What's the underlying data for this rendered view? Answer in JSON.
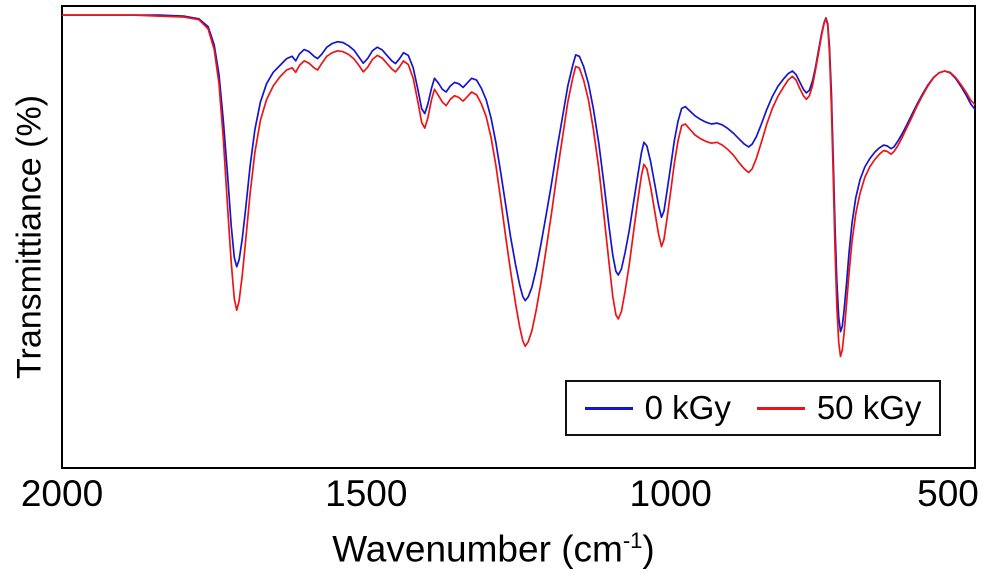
{
  "chart_data": {
    "type": "line",
    "title": "",
    "xlabel": "Wavenumber (cm⁻¹)",
    "ylabel": "Transmittiance (%)",
    "x_axis_reversed": true,
    "xlim": [
      2000,
      500
    ],
    "ylim": [
      0,
      100
    ],
    "x_ticks": [
      2000,
      1500,
      1000,
      500
    ],
    "y_ticks": [],
    "grid": false,
    "legend_position": "inside-bottom-right",
    "x": [
      2000,
      1960,
      1920,
      1880,
      1840,
      1800,
      1775,
      1760,
      1750,
      1742,
      1735,
      1728,
      1722,
      1717,
      1713,
      1709,
      1704,
      1698,
      1691,
      1683,
      1674,
      1664,
      1653,
      1642,
      1631,
      1622,
      1616,
      1610,
      1602,
      1594,
      1586,
      1580,
      1573,
      1565,
      1556,
      1547,
      1538,
      1529,
      1520,
      1512,
      1505,
      1498,
      1490,
      1482,
      1474,
      1466,
      1458,
      1452,
      1446,
      1439,
      1431,
      1423,
      1415,
      1409,
      1404,
      1399,
      1393,
      1388,
      1382,
      1375,
      1369,
      1362,
      1355,
      1348,
      1341,
      1334,
      1327,
      1319,
      1311,
      1303,
      1295,
      1287,
      1279,
      1271,
      1263,
      1255,
      1248,
      1243,
      1239,
      1234,
      1228,
      1221,
      1213,
      1205,
      1196,
      1187,
      1178,
      1169,
      1161,
      1156,
      1150,
      1143,
      1135,
      1127,
      1118,
      1109,
      1101,
      1095,
      1090,
      1086,
      1081,
      1075,
      1068,
      1061,
      1054,
      1048,
      1044,
      1039,
      1033,
      1026,
      1020,
      1015,
      1011,
      1006,
      1000,
      994,
      988,
      982,
      976,
      968,
      960,
      951,
      942,
      933,
      924,
      915,
      906,
      897,
      888,
      879,
      872,
      866,
      859,
      851,
      842,
      833,
      824,
      815,
      807,
      800,
      794,
      788,
      782,
      777,
      772,
      767,
      762,
      757,
      752,
      748,
      745,
      742,
      739,
      736,
      733,
      730,
      727,
      724,
      721,
      718,
      715,
      711,
      707,
      702,
      696,
      689,
      681,
      673,
      665,
      657,
      650,
      644,
      638,
      633,
      627,
      620,
      612,
      604,
      595,
      586,
      577,
      568,
      559,
      550,
      541,
      532,
      523,
      514,
      507,
      500
    ],
    "series": [
      {
        "name": "0 kGy",
        "color": "#1515cd",
        "values": [
          99,
          99,
          99,
          99,
          99,
          98.8,
          98.2,
          96.5,
          92.5,
          86,
          76,
          64,
          53,
          46,
          44,
          45.5,
          50,
          57,
          66,
          74,
          80,
          84,
          86.5,
          88,
          89.5,
          90,
          89,
          90.5,
          91.5,
          91,
          90,
          89.5,
          90.5,
          92,
          92.8,
          93.2,
          93,
          92.3,
          91.3,
          89.8,
          88.5,
          89.5,
          91.2,
          92,
          91.4,
          90.2,
          89,
          88.4,
          89.4,
          90.8,
          90.2,
          87.5,
          82.5,
          78.5,
          77.5,
          79.5,
          83,
          85.2,
          84.2,
          82.8,
          82.2,
          83.5,
          84.3,
          84,
          83.2,
          84.2,
          85.2,
          84.8,
          83,
          80.5,
          76.5,
          71,
          64.5,
          57.5,
          50.5,
          44.5,
          40,
          37.5,
          36.6,
          37.4,
          39.5,
          43.5,
          49,
          55,
          62,
          69.5,
          76.5,
          83.5,
          88,
          90.3,
          90,
          87.8,
          84,
          78.5,
          71,
          61.5,
          52.5,
          46.5,
          43,
          42.2,
          43.5,
          47,
          52,
          58,
          64,
          69,
          71.2,
          70.4,
          67,
          62,
          57.5,
          54.8,
          56.2,
          60.5,
          66,
          71.5,
          75.8,
          78.6,
          79,
          78,
          77,
          76.2,
          75.6,
          75.2,
          75.4,
          75,
          74.2,
          73.2,
          72,
          70.8,
          70.2,
          70.8,
          72.5,
          75.2,
          78.4,
          81.2,
          83.4,
          85,
          86.2,
          86.8,
          86,
          84.4,
          82.8,
          82,
          82.6,
          84.6,
          87.6,
          91.4,
          95,
          97.4,
          98.4,
          97.2,
          92,
          82,
          68,
          53,
          41,
          33,
          29.8,
          31,
          34.5,
          40.5,
          47,
          53.5,
          59,
          63,
          65.8,
          67.6,
          69,
          70,
          70.6,
          70.4,
          69.8,
          70.2,
          71.4,
          73,
          75,
          77.2,
          79.6,
          81.8,
          83.8,
          85.4,
          86.4,
          86.8,
          86.4,
          85.2,
          83.4,
          81.4,
          79.6,
          78.4
        ]
      },
      {
        "name": "50 kGy",
        "color": "#ec1515",
        "values": [
          99,
          99,
          99,
          99,
          98.8,
          98.6,
          98,
          96,
          91.5,
          84,
          72,
          57,
          45,
          37,
          34.5,
          36.5,
          42,
          50,
          60,
          69,
          76,
          80.5,
          83.5,
          85.5,
          87,
          87.5,
          86.5,
          88,
          89,
          88.5,
          87.5,
          87,
          88.5,
          90,
          90.8,
          91.2,
          91,
          90.4,
          89.4,
          88,
          86.6,
          87.6,
          89.3,
          90.2,
          89.6,
          88.4,
          87.2,
          86.6,
          87.6,
          89,
          88.2,
          85.2,
          79.8,
          75.5,
          74.3,
          76.5,
          80.5,
          82.8,
          81.5,
          80,
          79.2,
          80.6,
          81.4,
          81,
          80.2,
          81.2,
          82.2,
          81.6,
          79.6,
          76.8,
          72.2,
          66,
          58.5,
          50.5,
          43,
          36,
          30.8,
          27.8,
          26.6,
          27.6,
          30,
          34.5,
          40.5,
          47.5,
          55.5,
          64,
          72,
          80,
          85.2,
          87.8,
          87.4,
          84.8,
          80.4,
          74,
          65.5,
          54.5,
          44.5,
          37.5,
          33.5,
          32.6,
          34.2,
          38.5,
          44.5,
          51.5,
          58.5,
          64,
          66.4,
          65.4,
          61.5,
          56,
          51.2,
          48.4,
          50,
          54.5,
          60.5,
          66.5,
          71.5,
          74.8,
          75.2,
          74,
          72.8,
          72,
          71.4,
          71,
          71.2,
          70.6,
          69.6,
          68.4,
          66.8,
          65.4,
          64.6,
          65.4,
          67.8,
          71.2,
          75.2,
          78.6,
          81.2,
          83.2,
          84.8,
          85.6,
          84.8,
          83,
          81.4,
          80.6,
          81.4,
          83.6,
          87,
          90.8,
          94.6,
          97.2,
          98.3,
          96.8,
          90.5,
          79,
          64,
          48,
          35.5,
          27.5,
          24.4,
          25.8,
          29.5,
          36,
          42.5,
          49.5,
          55.5,
          60,
          63.5,
          65.8,
          67.4,
          68.6,
          69.4,
          69.2,
          68.6,
          69.2,
          70.4,
          72.2,
          74.4,
          76.6,
          79.2,
          81.5,
          83.6,
          85.3,
          86.4,
          86.8,
          86.5,
          85.4,
          83.8,
          82,
          80.4,
          79.4
        ]
      }
    ]
  },
  "labels": {
    "xlabel_prefix": "Wavenumber (cm",
    "xlabel_sup": "-1",
    "xlabel_suffix": ")"
  }
}
